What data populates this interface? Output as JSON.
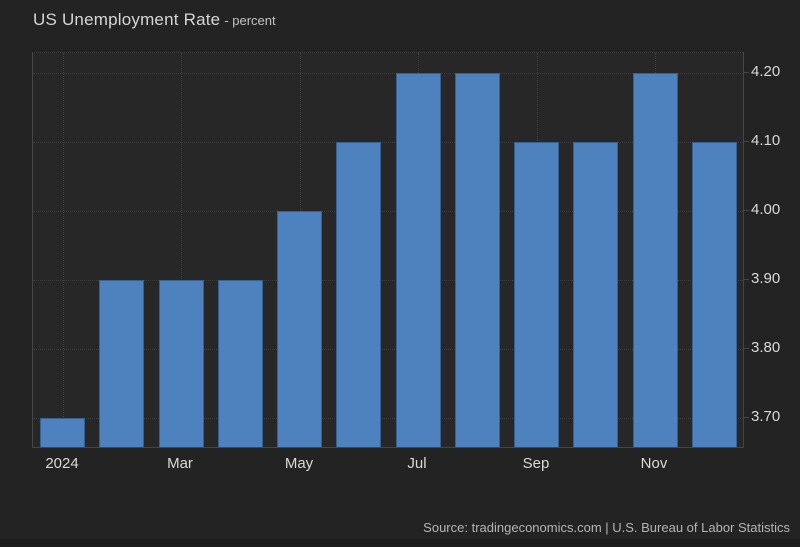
{
  "header": {
    "title": "US Unemployment Rate",
    "subtitle": "- percent"
  },
  "footer": {
    "source": "Source: tradingeconomics.com | U.S. Bureau of Labor Statistics"
  },
  "colors": {
    "background": "#232323",
    "plot_background": "#272727",
    "bar": "#4e82be",
    "bar_border": "#386090",
    "gridline": "#3d3d3d",
    "axis": "#454545",
    "text": "#d9d9d9",
    "title_text": "#d6d6d6",
    "muted_text": "#b5b5b5",
    "bottom_strip": "#1c1c1c"
  },
  "chart_data": {
    "type": "bar",
    "title": "US Unemployment Rate",
    "unit": "percent",
    "x": [
      "Jan 2024",
      "Feb 2024",
      "Mar 2024",
      "Apr 2024",
      "May 2024",
      "Jun 2024",
      "Jul 2024",
      "Aug 2024",
      "Sep 2024",
      "Oct 2024",
      "Nov 2024",
      "Dec 2024"
    ],
    "values": [
      3.7,
      3.9,
      3.9,
      3.9,
      4.0,
      4.1,
      4.2,
      4.2,
      4.1,
      4.1,
      4.2,
      4.1
    ],
    "x_tick_labels": [
      "2024",
      "Mar",
      "May",
      "Jul",
      "Sep",
      "Nov"
    ],
    "x_tick_month_indexes": [
      0,
      2,
      4,
      6,
      8,
      10
    ],
    "y_ticks": [
      "3.70",
      "3.80",
      "3.90",
      "4.00",
      "4.10",
      "4.20"
    ],
    "ylim": [
      3.656,
      4.229
    ],
    "grid": true,
    "legend": false,
    "y_axis_side": "right"
  }
}
